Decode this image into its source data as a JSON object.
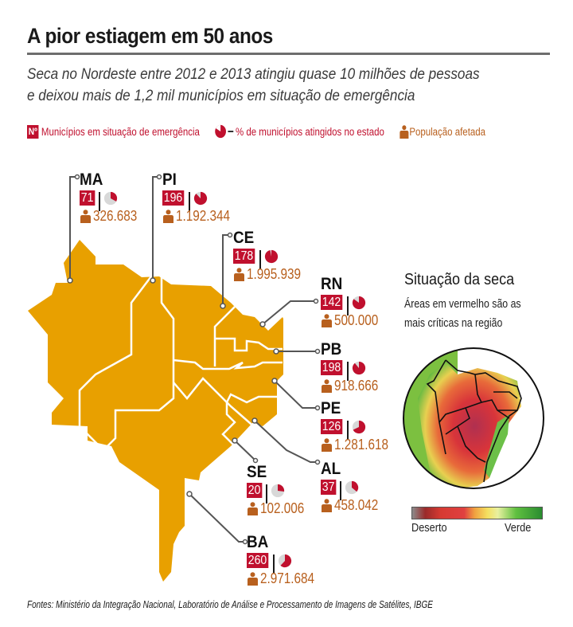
{
  "header": {
    "title": "A pior estiagem em 50 anos",
    "subtitle_line1": "Seca no Nordeste entre 2012 e 2013 atingiu quase 10 milhões de pessoas",
    "subtitle_line2": "e deixou mais de 1,2 mil municípios em situação de emergência"
  },
  "legend": {
    "count_symbol": "Nº",
    "count_label": "Municípios em situação de emergência",
    "pie_label": "% de municípios atingidos no estado",
    "population_label": "População afetada"
  },
  "colors": {
    "map_fill": "#e8a000",
    "emergency_red": "#c0102e",
    "population_brown": "#b8601e",
    "pie_gray": "#d8d8d8",
    "leader_line": "#555555"
  },
  "states": [
    {
      "abbr": "MA",
      "municipalities": "71",
      "pct_affected": 0.33,
      "population": "326.683"
    },
    {
      "abbr": "PI",
      "municipalities": "196",
      "pct_affected": 0.88,
      "population": "1.192.344"
    },
    {
      "abbr": "CE",
      "municipalities": "178",
      "pct_affected": 0.97,
      "population": "1.995.939"
    },
    {
      "abbr": "RN",
      "municipalities": "142",
      "pct_affected": 0.85,
      "population": "500.000"
    },
    {
      "abbr": "PB",
      "municipalities": "198",
      "pct_affected": 0.89,
      "population": "918.666"
    },
    {
      "abbr": "PE",
      "municipalities": "126",
      "pct_affected": 0.68,
      "population": "1.281.618"
    },
    {
      "abbr": "AL",
      "municipalities": "37",
      "pct_affected": 0.36,
      "population": "458.042"
    },
    {
      "abbr": "SE",
      "municipalities": "20",
      "pct_affected": 0.27,
      "population": "102.006"
    },
    {
      "abbr": "BA",
      "municipalities": "260",
      "pct_affected": 0.62,
      "population": "2.971.684"
    }
  ],
  "inset": {
    "title": "Situação da seca",
    "desc_line1": "Áreas em vermelho são as",
    "desc_line2": "mais críticas na região",
    "scale_left": "Deserto",
    "scale_right": "Verde"
  },
  "source": "Fontes: Ministério da Integração Nacional, Laboratório de Análise e Processamento de Imagens de Satélites, IBGE"
}
